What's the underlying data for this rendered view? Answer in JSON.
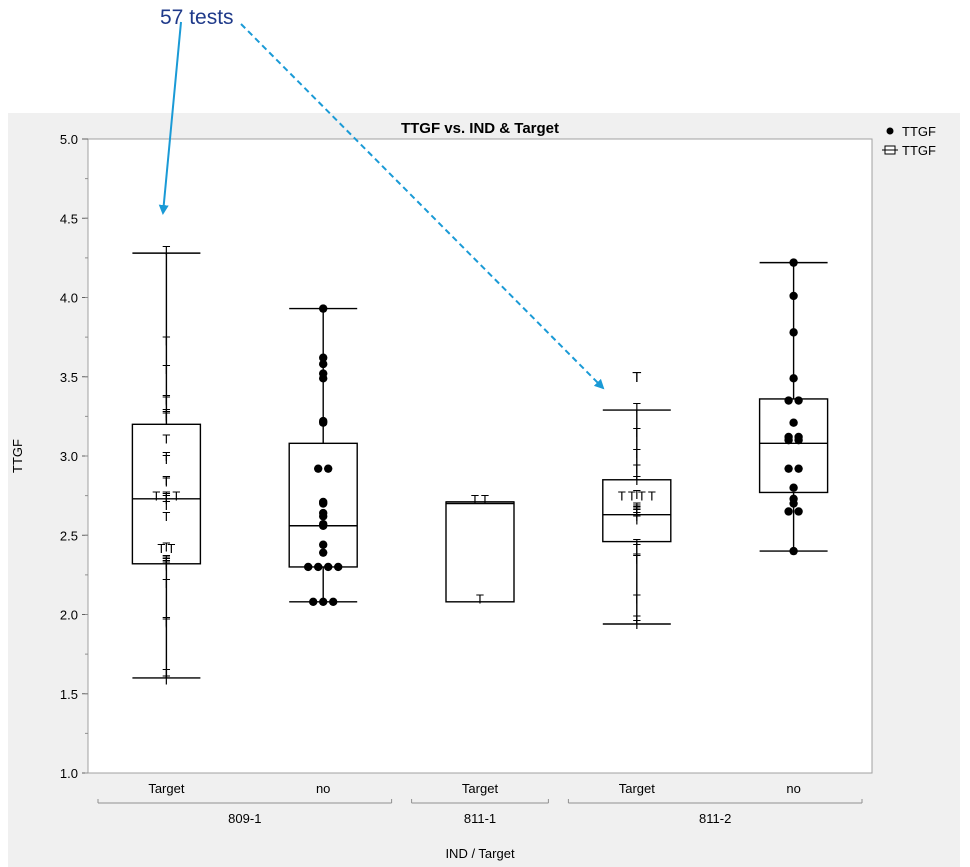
{
  "annotation": {
    "text": "57 tests",
    "color": "#1f3a8a",
    "arrow_color": "#1a9ad6"
  },
  "chart_data": {
    "type": "box",
    "title": "TTGF vs. IND & Target",
    "xlabel": "IND / Target",
    "ylabel": "TTGF",
    "ylim": [
      1.0,
      5.0
    ],
    "yticks": [
      1.0,
      1.5,
      2.0,
      2.5,
      3.0,
      3.5,
      4.0,
      4.5,
      5.0
    ],
    "grid": false,
    "legend_position": "top-right",
    "legend": [
      {
        "marker": "dot",
        "label": "TTGF"
      },
      {
        "marker": "box",
        "label": "TTGF"
      }
    ],
    "groups": [
      {
        "label": "809-1",
        "categories": [
          "Target",
          "no"
        ]
      },
      {
        "label": "811-1",
        "categories": [
          "Target"
        ]
      },
      {
        "label": "811-2",
        "categories": [
          "Target",
          "no"
        ]
      }
    ],
    "boxes": [
      {
        "group": "809-1",
        "category": "Target",
        "marker": "T",
        "min": 1.6,
        "q1": 2.32,
        "median": 2.73,
        "q3": 3.2,
        "max": 4.28,
        "points": [
          4.3,
          3.73,
          3.55,
          3.36,
          3.35,
          3.27,
          3.26,
          3.25,
          3.11,
          3.0,
          2.98,
          2.85,
          2.84,
          2.75,
          2.75,
          2.75,
          2.74,
          2.73,
          2.69,
          2.62,
          2.43,
          2.42,
          2.42,
          2.35,
          2.34,
          2.33,
          2.32,
          2.31,
          2.2,
          1.96,
          1.95,
          1.63,
          1.59
        ]
      },
      {
        "group": "809-1",
        "category": "no",
        "marker": "dot",
        "min": 2.08,
        "q1": 2.3,
        "median": 2.56,
        "q3": 3.08,
        "max": 3.93,
        "points": [
          3.93,
          3.62,
          3.58,
          3.52,
          3.49,
          3.22,
          3.21,
          2.92,
          2.92,
          2.71,
          2.7,
          2.64,
          2.62,
          2.57,
          2.56,
          2.44,
          2.39,
          2.3,
          2.3,
          2.3,
          2.3,
          2.08,
          2.08,
          2.08
        ]
      },
      {
        "group": "811-1",
        "category": "Target",
        "marker": "T",
        "min": 2.08,
        "q1": 2.08,
        "median": 2.7,
        "q3": 2.71,
        "max": 2.71,
        "points": [
          2.73,
          2.73,
          2.1
        ]
      },
      {
        "group": "811-2",
        "category": "Target",
        "marker": "T",
        "min": 1.94,
        "q1": 2.46,
        "median": 2.63,
        "q3": 2.85,
        "max": 3.29,
        "outliers": [
          3.5
        ],
        "points": [
          3.31,
          3.15,
          3.02,
          2.92,
          2.85,
          2.76,
          2.75,
          2.75,
          2.75,
          2.75,
          2.68,
          2.67,
          2.66,
          2.65,
          2.64,
          2.62,
          2.6,
          2.45,
          2.42,
          2.36,
          2.35,
          2.1,
          1.97,
          1.94
        ]
      },
      {
        "group": "811-2",
        "category": "no",
        "marker": "dot",
        "min": 2.4,
        "q1": 2.77,
        "median": 3.08,
        "q3": 3.36,
        "max": 4.22,
        "points": [
          4.22,
          4.01,
          3.78,
          3.49,
          3.35,
          3.35,
          3.21,
          3.12,
          3.12,
          3.1,
          3.1,
          2.92,
          2.92,
          2.8,
          2.73,
          2.7,
          2.65,
          2.65,
          2.4
        ]
      }
    ]
  }
}
